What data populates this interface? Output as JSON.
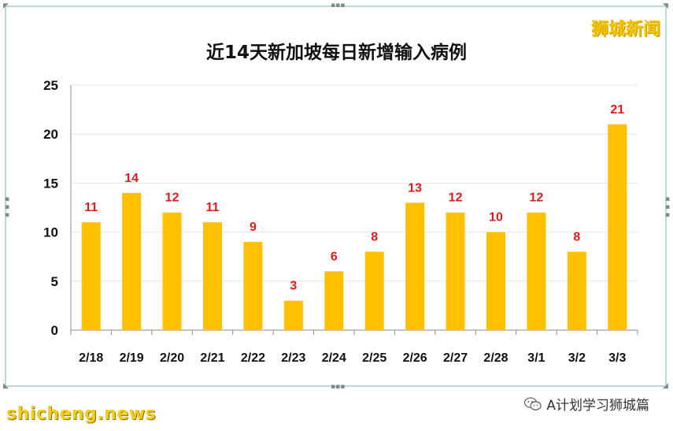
{
  "brand": {
    "name": "狮城新闻"
  },
  "footer": {
    "site": "shicheng.news",
    "account": "A计划学习狮城篇"
  },
  "colors": {
    "bar": "#ffc000",
    "label": "#e01b1b",
    "frame": "#b9dcd8"
  },
  "chart_data": {
    "type": "bar",
    "title": "近14天新加坡每日新增输入病例",
    "xlabel": "",
    "ylabel": "",
    "categories": [
      "2/18",
      "2/19",
      "2/20",
      "2/21",
      "2/22",
      "2/23",
      "2/24",
      "2/25",
      "2/26",
      "2/27",
      "2/28",
      "3/1",
      "3/2",
      "3/3"
    ],
    "values": [
      11,
      14,
      12,
      11,
      9,
      3,
      6,
      8,
      13,
      12,
      10,
      12,
      8,
      21
    ],
    "ylim": [
      0,
      25
    ],
    "yticks": [
      0,
      5,
      10,
      15,
      20,
      25
    ],
    "grid": true,
    "data_labels": true
  }
}
